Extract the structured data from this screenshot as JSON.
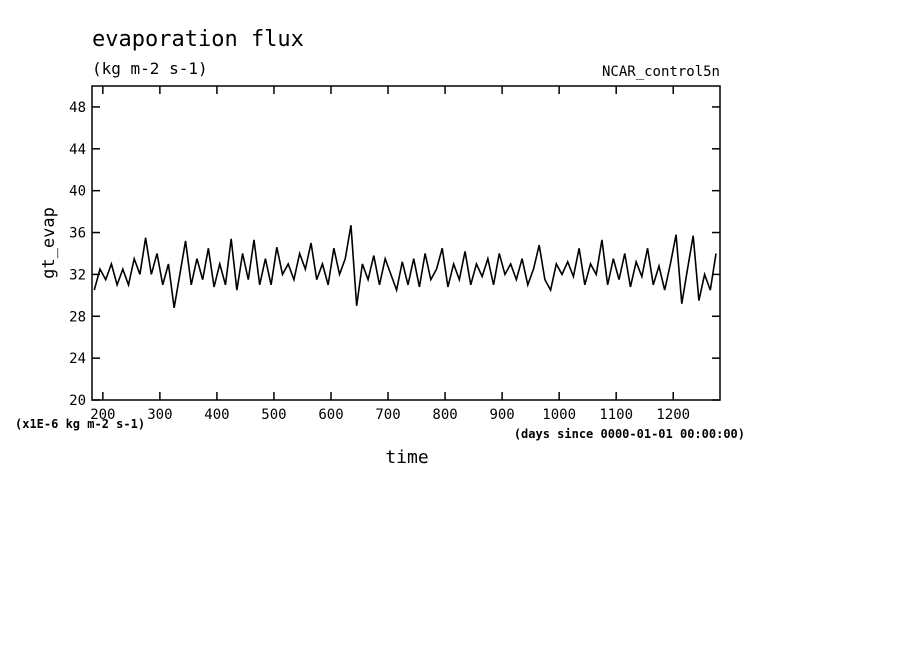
{
  "chart_data": {
    "type": "line",
    "title": "evaporation flux",
    "subtitle": "(kg m-2 s-1)",
    "experiment": "NCAR_control5n",
    "ylabel": "gt_evap",
    "xlabel": "time",
    "y_unit_note": "(x1E-6 kg m-2 s-1)",
    "x_unit_note": "(days since 0000-01-01 00:00:00)",
    "color": "#000000",
    "xlim": [
      181,
      1282
    ],
    "ylim": [
      20,
      50
    ],
    "xticks": [
      200,
      300,
      400,
      500,
      600,
      700,
      800,
      900,
      1000,
      1100,
      1200
    ],
    "yticks": [
      20,
      24,
      28,
      32,
      36,
      40,
      44,
      48
    ],
    "x": [
      185,
      195,
      205,
      215,
      225,
      235,
      245,
      255,
      265,
      275,
      285,
      295,
      305,
      315,
      325,
      335,
      345,
      355,
      365,
      375,
      385,
      395,
      405,
      415,
      425,
      435,
      445,
      455,
      465,
      475,
      485,
      495,
      505,
      515,
      525,
      535,
      545,
      555,
      565,
      575,
      585,
      595,
      605,
      615,
      625,
      635,
      645,
      655,
      665,
      675,
      685,
      695,
      705,
      715,
      725,
      735,
      745,
      755,
      765,
      775,
      785,
      795,
      805,
      815,
      825,
      835,
      845,
      855,
      865,
      875,
      885,
      895,
      905,
      915,
      925,
      935,
      945,
      955,
      965,
      975,
      985,
      995,
      1005,
      1015,
      1025,
      1035,
      1045,
      1055,
      1065,
      1075,
      1085,
      1095,
      1105,
      1115,
      1125,
      1135,
      1145,
      1155,
      1165,
      1175,
      1185,
      1195,
      1205,
      1215,
      1225,
      1235,
      1245,
      1255,
      1265,
      1275
    ],
    "values": [
      30.5,
      32.5,
      31.5,
      33,
      31,
      32.5,
      31,
      33.5,
      32,
      35.5,
      32,
      34,
      31,
      33,
      28.8,
      32,
      35.2,
      31,
      33.5,
      31.5,
      34.5,
      30.8,
      33,
      31,
      35.4,
      30.5,
      34,
      31.5,
      35.3,
      31,
      33.5,
      31,
      34.6,
      32,
      33,
      31.5,
      34,
      32.5,
      35,
      31.5,
      33,
      31,
      34.5,
      32,
      33.5,
      36.7,
      29,
      33,
      31.5,
      33.8,
      31,
      33.5,
      32,
      30.5,
      33.2,
      31,
      33.5,
      30.8,
      34,
      31.5,
      32.5,
      34.5,
      30.8,
      33,
      31.5,
      34.2,
      31,
      33,
      31.8,
      33.5,
      31,
      34,
      32,
      33,
      31.5,
      33.5,
      31,
      32.5,
      34.8,
      31.5,
      30.5,
      33,
      32,
      33.2,
      31.8,
      34.5,
      31,
      33,
      32,
      35.3,
      31,
      33.5,
      31.5,
      34,
      30.8,
      33.2,
      31.8,
      34.5,
      31,
      32.8,
      30.5,
      33,
      35.8,
      29.2,
      32.5,
      35.7,
      29.5,
      32,
      30.5,
      34
    ]
  }
}
